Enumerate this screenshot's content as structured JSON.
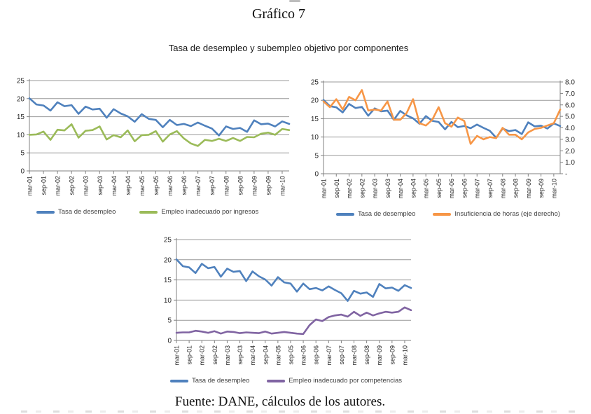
{
  "page": {
    "title": "Gráfico 7",
    "subtitle": "Tasa de desempleo y subempleo objetivo por componentes",
    "source": "Fuente: DANE, cálculos de los autores."
  },
  "colors": {
    "unemployment_blue": "#4F81BD",
    "income_green": "#9BBB59",
    "hours_orange": "#F79646",
    "competences_purple": "#8064A2",
    "gridline": "#999999",
    "axis": "#808080",
    "tick_label": "#262626",
    "legend_text": "#3f3f3f"
  },
  "chart_data": [
    {
      "id": "unemployment-vs-income",
      "type": "line",
      "x_tick_labels": [
        "mar-01",
        "sep-01",
        "mar-02",
        "sep-02",
        "mar-03",
        "sep-03",
        "mar-04",
        "sep-04",
        "mar-05",
        "sep-05",
        "mar-06",
        "sep-06",
        "mar-07",
        "sep-07",
        "mar-08",
        "sep-08",
        "mar-09",
        "sep-09",
        "mar-10"
      ],
      "label_every_n_points": 2,
      "grid": true,
      "legend_position": "bottom",
      "y_left": {
        "min": 0,
        "max": 25,
        "ticks": [
          0,
          5,
          10,
          15,
          20,
          25
        ]
      },
      "series": [
        {
          "name": "Tasa de desempleo",
          "color": "#4F81BD",
          "axis": "left",
          "values": [
            20.1,
            18.4,
            18.1,
            16.7,
            19.0,
            17.9,
            18.2,
            15.8,
            17.8,
            17.0,
            17.2,
            14.7,
            17.1,
            15.9,
            15.1,
            13.6,
            15.7,
            14.4,
            14.1,
            12.1,
            14.1,
            12.7,
            13.0,
            12.4,
            13.4,
            12.5,
            11.7,
            9.8,
            12.3,
            11.6,
            11.9,
            10.8,
            14.0,
            12.9,
            13.1,
            12.3,
            13.7,
            13.0
          ]
        },
        {
          "name": "Empleo inadecuado por ingresos",
          "color": "#9BBB59",
          "axis": "left",
          "values": [
            10.0,
            10.1,
            10.9,
            8.6,
            11.4,
            11.2,
            12.9,
            9.2,
            11.1,
            11.3,
            12.3,
            8.7,
            9.9,
            9.3,
            11.2,
            8.2,
            9.9,
            10.0,
            11.0,
            8.1,
            10.1,
            11.0,
            9.0,
            7.6,
            6.9,
            8.6,
            8.3,
            8.9,
            8.3,
            9.1,
            8.3,
            9.4,
            9.3,
            10.3,
            10.6,
            10.0,
            11.6,
            11.3
          ]
        }
      ]
    },
    {
      "id": "unemployment-vs-hours",
      "type": "line",
      "x_tick_labels": [
        "mar-01",
        "sep-01",
        "mar-02",
        "sep-02",
        "mar-03",
        "sep-03",
        "mar-04",
        "sep-04",
        "mar-05",
        "sep-05",
        "mar-06",
        "sep-06",
        "mar-07",
        "sep-07",
        "mar-08",
        "sep-08",
        "mar-09",
        "sep-09",
        "mar-10"
      ],
      "label_every_n_points": 2,
      "grid": true,
      "legend_position": "bottom",
      "y_left": {
        "min": 0,
        "max": 25,
        "ticks": [
          0,
          5,
          10,
          15,
          20,
          25
        ]
      },
      "y_right": {
        "min": 0,
        "max": 8,
        "ticks": [
          {
            "value": 8,
            "label": "8.0"
          },
          {
            "value": 7,
            "label": "7.0"
          },
          {
            "value": 6,
            "label": "6.0"
          },
          {
            "value": 5,
            "label": "5.0"
          },
          {
            "value": 4,
            "label": "4.0"
          },
          {
            "value": 3,
            "label": "3.0"
          },
          {
            "value": 2,
            "label": "2.0"
          },
          {
            "value": 1,
            "label": "1.0"
          },
          {
            "value": 0,
            "label": "-"
          }
        ]
      },
      "series": [
        {
          "name": "Tasa de desempleo",
          "color": "#4F81BD",
          "axis": "left",
          "values": [
            20.1,
            18.4,
            18.1,
            16.7,
            19.0,
            17.9,
            18.2,
            15.8,
            17.8,
            17.0,
            17.2,
            14.7,
            17.1,
            15.9,
            15.1,
            13.6,
            15.7,
            14.4,
            14.1,
            12.1,
            14.1,
            12.7,
            13.0,
            12.4,
            13.4,
            12.5,
            11.7,
            9.8,
            12.3,
            11.6,
            11.9,
            10.8,
            14.0,
            12.9,
            13.1,
            12.3,
            13.7,
            13.0
          ]
        },
        {
          "name": "Insuficiencia de horas (eje derecho)",
          "color": "#F79646",
          "axis": "right",
          "values": [
            6.3,
            5.8,
            6.5,
            5.6,
            6.7,
            6.4,
            7.3,
            5.5,
            5.6,
            5.5,
            6.3,
            4.7,
            4.7,
            5.3,
            6.5,
            4.4,
            4.2,
            4.7,
            5.8,
            4.4,
            4.1,
            4.9,
            4.6,
            2.6,
            3.3,
            3.0,
            3.2,
            3.1,
            4.0,
            3.4,
            3.4,
            3.0,
            3.6,
            3.9,
            4.0,
            4.2,
            4.4,
            5.6
          ]
        }
      ]
    },
    {
      "id": "unemployment-vs-competences",
      "type": "line",
      "x_tick_labels": [
        "mar-01",
        "sep-01",
        "mar-02",
        "sep-02",
        "mar-03",
        "sep-03",
        "mar-04",
        "sep-04",
        "mar-05",
        "sep-05",
        "mar-06",
        "sep-06",
        "mar-07",
        "sep-07",
        "mar-08",
        "sep-08",
        "mar-09",
        "sep-09",
        "mar-10"
      ],
      "label_every_n_points": 2,
      "grid": true,
      "legend_position": "bottom",
      "y_left": {
        "min": 0,
        "max": 25,
        "ticks": [
          0,
          5,
          10,
          15,
          20,
          25
        ]
      },
      "series": [
        {
          "name": "Tasa de desempleo",
          "color": "#4F81BD",
          "axis": "left",
          "values": [
            20.1,
            18.4,
            18.1,
            16.7,
            19.0,
            17.9,
            18.2,
            15.8,
            17.8,
            17.0,
            17.2,
            14.7,
            17.1,
            15.9,
            15.1,
            13.6,
            15.7,
            14.4,
            14.1,
            12.1,
            14.1,
            12.7,
            13.0,
            12.4,
            13.4,
            12.5,
            11.7,
            9.8,
            12.3,
            11.6,
            11.9,
            10.8,
            14.0,
            12.9,
            13.1,
            12.3,
            13.7,
            13.0
          ]
        },
        {
          "name": "Empleo inadecuado por competencias",
          "color": "#8064A2",
          "axis": "left",
          "values": [
            1.9,
            2.0,
            2.0,
            2.4,
            2.2,
            1.9,
            2.3,
            1.7,
            2.2,
            2.1,
            1.8,
            2.0,
            1.9,
            1.8,
            2.2,
            1.7,
            1.9,
            2.1,
            1.9,
            1.7,
            1.6,
            3.8,
            5.2,
            4.8,
            5.8,
            6.2,
            6.4,
            5.9,
            7.1,
            6.1,
            6.9,
            6.2,
            6.7,
            7.1,
            6.9,
            7.1,
            8.2,
            7.5
          ]
        }
      ]
    }
  ]
}
